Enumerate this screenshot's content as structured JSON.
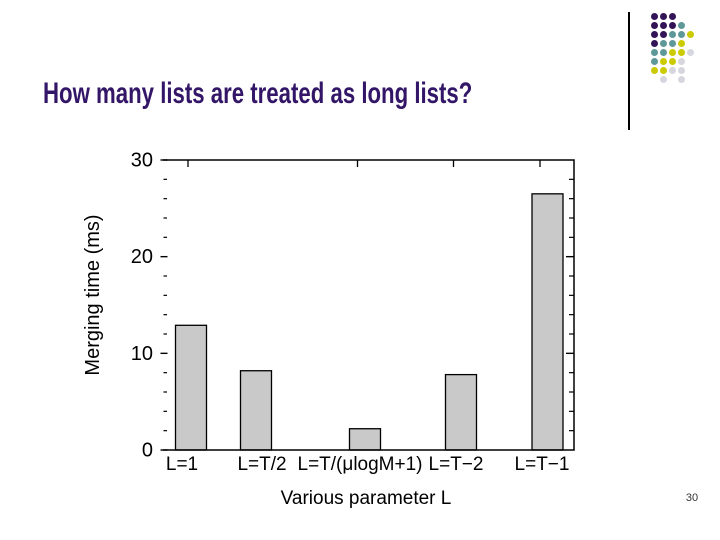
{
  "slide": {
    "title": "How many lists are treated as long lists?",
    "title_color": "#331667",
    "page_number": "30"
  },
  "decoration": {
    "dot_colors": {
      "purple": "#321457",
      "teal": "#5E9898",
      "yellow": "#CBCB00",
      "gray": "#D6D6DE"
    },
    "dot_grid": [
      [
        "purple",
        "purple",
        "purple",
        null,
        null
      ],
      [
        "purple",
        "purple",
        "purple",
        "teal",
        null
      ],
      [
        "purple",
        "purple",
        "teal",
        "teal",
        "yellow"
      ],
      [
        "purple",
        "teal",
        "teal",
        "yellow",
        null
      ],
      [
        "teal",
        "teal",
        "yellow",
        "yellow",
        "gray"
      ],
      [
        "teal",
        "yellow",
        "yellow",
        "gray",
        null
      ],
      [
        "yellow",
        "yellow",
        "gray",
        "gray",
        null
      ],
      [
        null,
        "gray",
        null,
        "gray",
        null
      ]
    ]
  },
  "chart_data": {
    "type": "bar",
    "title": "",
    "categories": [
      "L=1",
      "L=T/2",
      "L=T/(μlogM+1)",
      "L=T−2",
      "L=T−1"
    ],
    "values": [
      12.9,
      8.2,
      2.2,
      7.8,
      26.5
    ],
    "xlabel": "Various parameter L",
    "ylabel": "Merging time (ms)",
    "ylim": [
      0,
      30
    ],
    "ytick_values": [
      0,
      10,
      20,
      30
    ],
    "minor_tick_step": 2,
    "bar_color": "#c9c9c9",
    "bar_edge_color": "#000000",
    "axis_color": "#000000",
    "grid": false,
    "legend": "none"
  }
}
